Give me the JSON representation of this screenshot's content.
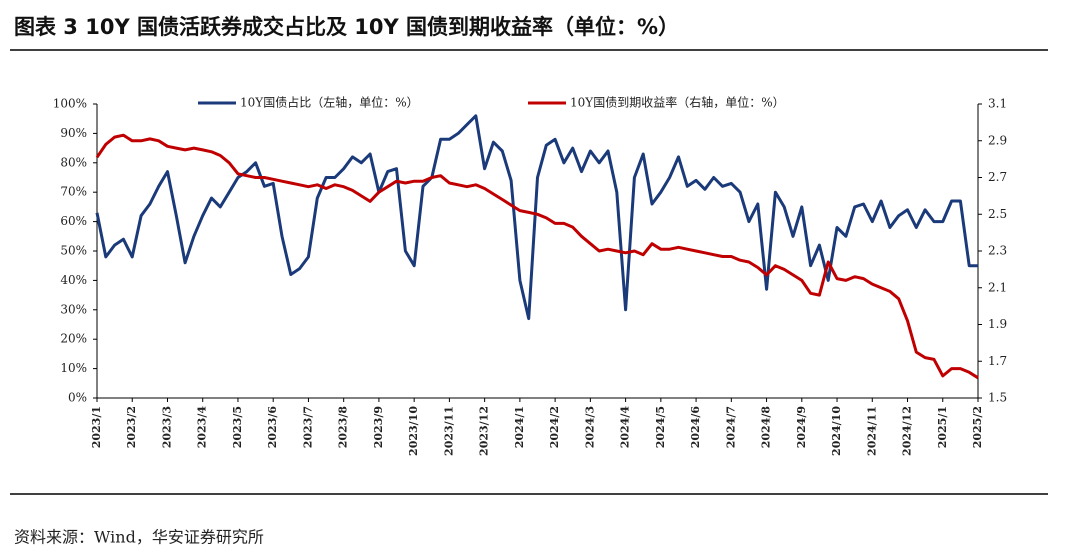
{
  "title": "图表 3 10Y 国债活跃券成交占比及 10Y 国债到期收益率（单位：%）",
  "source": "资料来源：Wind，华安证券研究所",
  "chart_data": {
    "type": "line",
    "legend": "top",
    "categories": [
      "2023/1",
      null,
      null,
      null,
      "2023/2",
      null,
      null,
      null,
      "2023/3",
      null,
      null,
      null,
      "2023/4",
      null,
      null,
      null,
      "2023/5",
      null,
      null,
      null,
      "2023/6",
      null,
      null,
      null,
      "2023/7",
      null,
      null,
      null,
      "2023/8",
      null,
      null,
      null,
      "2023/9",
      null,
      null,
      null,
      "2023/10",
      null,
      null,
      null,
      "2023/11",
      null,
      null,
      null,
      "2023/12",
      null,
      null,
      null,
      "2024/1",
      null,
      null,
      null,
      "2024/2",
      null,
      null,
      null,
      "2024/3",
      null,
      null,
      null,
      "2024/4",
      null,
      null,
      null,
      "2024/5",
      null,
      null,
      null,
      "2024/6",
      null,
      null,
      null,
      "2024/7",
      null,
      null,
      null,
      "2024/8",
      null,
      null,
      null,
      "2024/9",
      null,
      null,
      null,
      "2024/10",
      null,
      null,
      null,
      "2024/11",
      null,
      null,
      null,
      "2024/12",
      null,
      null,
      null,
      "2025/1",
      null,
      null,
      null,
      "2025/2"
    ],
    "series": [
      {
        "name": "10Y国债占比（左轴，单位：%）",
        "color": "#1b3a7a",
        "axis": "y",
        "values": [
          63,
          48,
          52,
          54,
          48,
          62,
          66,
          72,
          77,
          62,
          46,
          55,
          62,
          68,
          65,
          70,
          75,
          77,
          80,
          72,
          73,
          55,
          42,
          44,
          48,
          68,
          75,
          75,
          78,
          82,
          80,
          83,
          70,
          77,
          78,
          50,
          45,
          72,
          75,
          88,
          88,
          90,
          93,
          96,
          78,
          87,
          84,
          74,
          40,
          27,
          75,
          86,
          88,
          80,
          85,
          77,
          84,
          80,
          84,
          70,
          30,
          75,
          83,
          66,
          70,
          75,
          82,
          72,
          74,
          71,
          75,
          72,
          73,
          70,
          60,
          66,
          37,
          70,
          65,
          55,
          65,
          45,
          52,
          40,
          58,
          55,
          65,
          66,
          60,
          67,
          58,
          62,
          64,
          58,
          64,
          60,
          60,
          67,
          67,
          45,
          45
        ]
      },
      {
        "name": "10Y国债到期收益率（右轴，单位：%）",
        "color": "#c00000",
        "axis": "y2",
        "values": [
          2.81,
          2.88,
          2.92,
          2.93,
          2.9,
          2.9,
          2.91,
          2.9,
          2.87,
          2.86,
          2.85,
          2.86,
          2.85,
          2.84,
          2.82,
          2.78,
          2.72,
          2.71,
          2.7,
          2.7,
          2.69,
          2.68,
          2.67,
          2.66,
          2.65,
          2.66,
          2.64,
          2.66,
          2.65,
          2.63,
          2.6,
          2.57,
          2.62,
          2.65,
          2.68,
          2.67,
          2.68,
          2.68,
          2.7,
          2.71,
          2.67,
          2.66,
          2.65,
          2.66,
          2.64,
          2.61,
          2.58,
          2.55,
          2.52,
          2.51,
          2.5,
          2.48,
          2.45,
          2.45,
          2.43,
          2.38,
          2.34,
          2.3,
          2.31,
          2.3,
          2.29,
          2.3,
          2.28,
          2.34,
          2.31,
          2.31,
          2.32,
          2.31,
          2.3,
          2.29,
          2.28,
          2.27,
          2.27,
          2.25,
          2.24,
          2.21,
          2.17,
          2.22,
          2.2,
          2.17,
          2.14,
          2.07,
          2.06,
          2.24,
          2.15,
          2.14,
          2.16,
          2.15,
          2.12,
          2.1,
          2.08,
          2.04,
          1.92,
          1.75,
          1.72,
          1.71,
          1.62,
          1.66,
          1.66,
          1.64,
          1.61
        ]
      }
    ],
    "ylim": [
      0,
      100
    ],
    "yticks": [
      {
        "value": 0,
        "label": "0%"
      },
      {
        "value": 10,
        "label": "10%"
      },
      {
        "value": 20,
        "label": "20%"
      },
      {
        "value": 30,
        "label": "30%"
      },
      {
        "value": 40,
        "label": "40%"
      },
      {
        "value": 50,
        "label": "50%"
      },
      {
        "value": 60,
        "label": "60%"
      },
      {
        "value": 70,
        "label": "70%"
      },
      {
        "value": 80,
        "label": "80%"
      },
      {
        "value": 90,
        "label": "90%"
      },
      {
        "value": 100,
        "label": "100%"
      }
    ],
    "y2lim": [
      1.5,
      3.1
    ],
    "y2ticks": [
      1.5,
      1.7,
      1.9,
      2.1,
      2.3,
      2.5,
      2.7,
      2.9,
      3.1
    ]
  }
}
